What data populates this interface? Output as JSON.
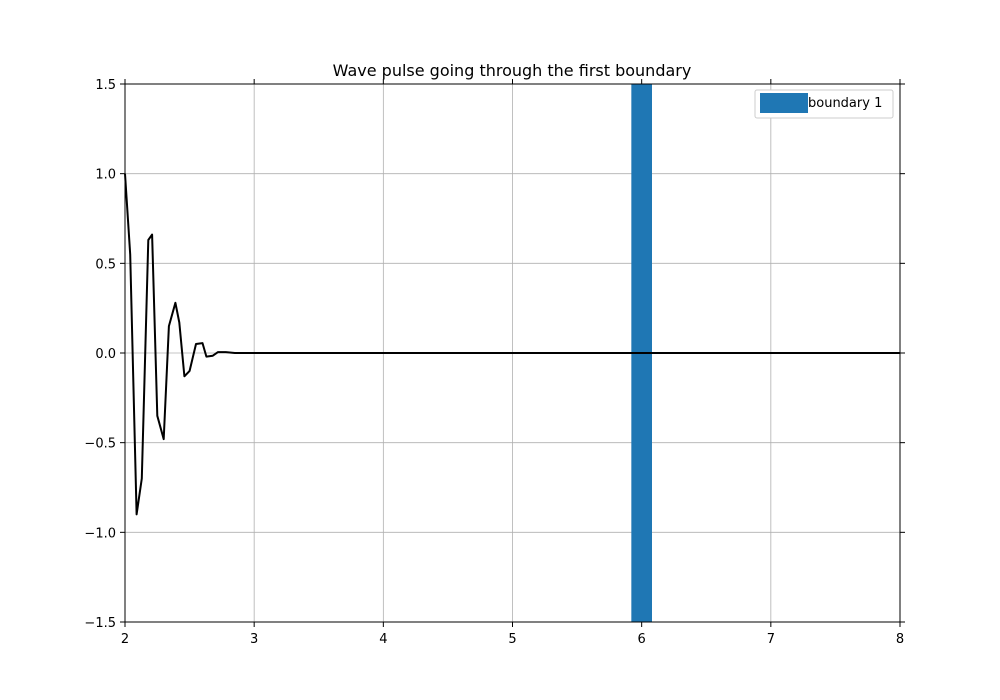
{
  "chart_data": {
    "type": "line",
    "title": "Wave pulse going through the first boundary",
    "xlabel": "",
    "ylabel": "",
    "xlim": [
      2,
      8
    ],
    "ylim": [
      -1.5,
      1.5
    ],
    "xticks": [
      2,
      3,
      4,
      5,
      6,
      7,
      8
    ],
    "yticks": [
      -1.5,
      -1.0,
      -0.5,
      0.0,
      0.5,
      1.0,
      1.5
    ],
    "xtick_labels": [
      "2",
      "3",
      "4",
      "5",
      "6",
      "7",
      "8"
    ],
    "ytick_labels": [
      "−1.5",
      "−1.0",
      "−0.5",
      "0.0",
      "0.5",
      "1.0",
      "1.5"
    ],
    "grid": true,
    "legend_position": "top-right",
    "legend": [
      "boundary 1"
    ],
    "boundary": {
      "name": "boundary 1",
      "x_start": 5.92,
      "x_end": 6.08,
      "color": "#1f77b4"
    },
    "series": [
      {
        "color": "#000000",
        "x": [
          2.0,
          2.04,
          2.09,
          2.13,
          2.18,
          2.21,
          2.25,
          2.3,
          2.34,
          2.39,
          2.42,
          2.46,
          2.5,
          2.55,
          2.6,
          2.63,
          2.68,
          2.72,
          2.78,
          2.85,
          2.92,
          3.0,
          3.5,
          4.0,
          5.0,
          6.0,
          7.0,
          8.0
        ],
        "y": [
          1.0,
          0.55,
          -0.9,
          -0.7,
          0.63,
          0.66,
          -0.35,
          -0.48,
          0.15,
          0.28,
          0.17,
          -0.13,
          -0.1,
          0.05,
          0.055,
          -0.02,
          -0.015,
          0.005,
          0.005,
          0.0,
          0.0,
          0.0,
          0.0,
          0.0,
          0.0,
          0.0,
          0.0,
          0.0
        ]
      }
    ]
  }
}
